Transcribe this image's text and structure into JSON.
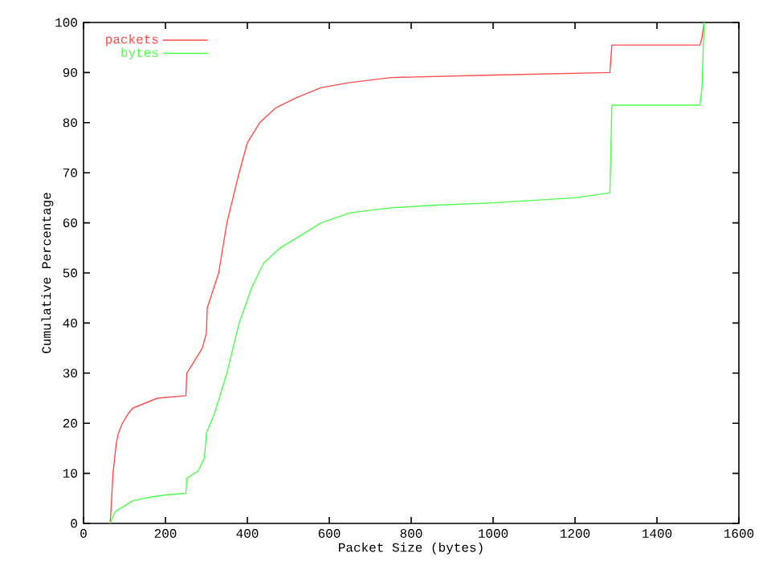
{
  "chart_data": {
    "type": "line",
    "xlabel": "Packet Size (bytes)",
    "ylabel": "Cumulative Percentage",
    "xlim": [
      0,
      1600
    ],
    "ylim": [
      0,
      100
    ],
    "xticks": [
      0,
      200,
      400,
      600,
      800,
      1000,
      1200,
      1400,
      1600
    ],
    "yticks": [
      0,
      10,
      20,
      30,
      40,
      50,
      60,
      70,
      80,
      90,
      100
    ],
    "legend": "top left",
    "grid": false,
    "marker": "none",
    "line_style": "solid",
    "series": [
      {
        "name": "packets",
        "color": "#ff4d4d",
        "x": [
          65,
          68,
          72,
          80,
          85,
          95,
          110,
          120,
          150,
          180,
          250,
          252,
          260,
          290,
          300,
          302,
          310,
          330,
          350,
          380,
          400,
          430,
          470,
          520,
          580,
          650,
          750,
          1000,
          1285,
          1290,
          1505,
          1510,
          1515
        ],
        "values": [
          0,
          4,
          10,
          16,
          18,
          20,
          22,
          23,
          24,
          25,
          25.5,
          30,
          31,
          35,
          38,
          43,
          45,
          50,
          60,
          70,
          76,
          80,
          83,
          85,
          87,
          88,
          89,
          89.5,
          90,
          95.5,
          95.5,
          97,
          100
        ]
      },
      {
        "name": "bytes",
        "color": "#4dff4d",
        "x": [
          65,
          75,
          80,
          100,
          120,
          160,
          200,
          250,
          252,
          280,
          295,
          300,
          320,
          350,
          380,
          410,
          440,
          480,
          520,
          580,
          650,
          750,
          850,
          1000,
          1200,
          1285,
          1290,
          1505,
          1510,
          1515
        ],
        "values": [
          0,
          2,
          2.5,
          3.5,
          4.5,
          5.2,
          5.7,
          6,
          9,
          10.5,
          13,
          18,
          22,
          30,
          40,
          47,
          52,
          55,
          57,
          60,
          62,
          63,
          63.5,
          64,
          65,
          66,
          83.5,
          83.5,
          87,
          100
        ]
      }
    ]
  }
}
